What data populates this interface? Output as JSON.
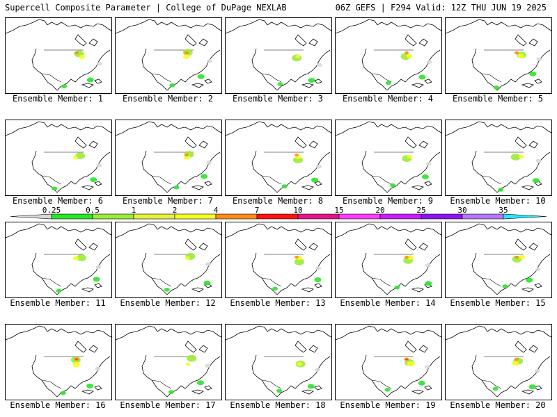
{
  "header": {
    "left_title": "Supercell Composite Parameter | College of DuPage NEXLAB",
    "right_title": "06Z GEFS | F294 Valid: 12Z THU JUN 19 2025"
  },
  "member_label_prefix": "Ensemble Member: ",
  "members": [
    {
      "number": 1,
      "hot": 0.5
    },
    {
      "number": 2,
      "hot": 0.6
    },
    {
      "number": 3,
      "hot": 0.1
    },
    {
      "number": 4,
      "hot": 0.5
    },
    {
      "number": 5,
      "hot": 0.6
    },
    {
      "number": 6,
      "hot": 0.2
    },
    {
      "number": 7,
      "hot": 0.5
    },
    {
      "number": 8,
      "hot": 0.5
    },
    {
      "number": 9,
      "hot": 0.3
    },
    {
      "number": 10,
      "hot": 0.3
    },
    {
      "number": 11,
      "hot": 0.4
    },
    {
      "number": 12,
      "hot": 0.2
    },
    {
      "number": 13,
      "hot": 0.5
    },
    {
      "number": 14,
      "hot": 0.6
    },
    {
      "number": 15,
      "hot": 0.5
    },
    {
      "number": 16,
      "hot": 0.8
    },
    {
      "number": 17,
      "hot": 0.1
    },
    {
      "number": 18,
      "hot": 0.3
    },
    {
      "number": 19,
      "hot": 0.8
    },
    {
      "number": 20,
      "hot": 0.6
    }
  ],
  "colorbar": {
    "labels": [
      "0.25",
      "0.5",
      "1",
      "2",
      "4",
      "7",
      "10",
      "15",
      "20",
      "25",
      "30",
      "35"
    ],
    "colors": [
      "#d9d9d9",
      "#28e628",
      "#9aeb3a",
      "#e6f03c",
      "#f6ff22",
      "#ff8c1a",
      "#ff1414",
      "#e6148a",
      "#ff3cff",
      "#c81eff",
      "#8c14f0",
      "#b478ff",
      "#28e6ff"
    ]
  }
}
